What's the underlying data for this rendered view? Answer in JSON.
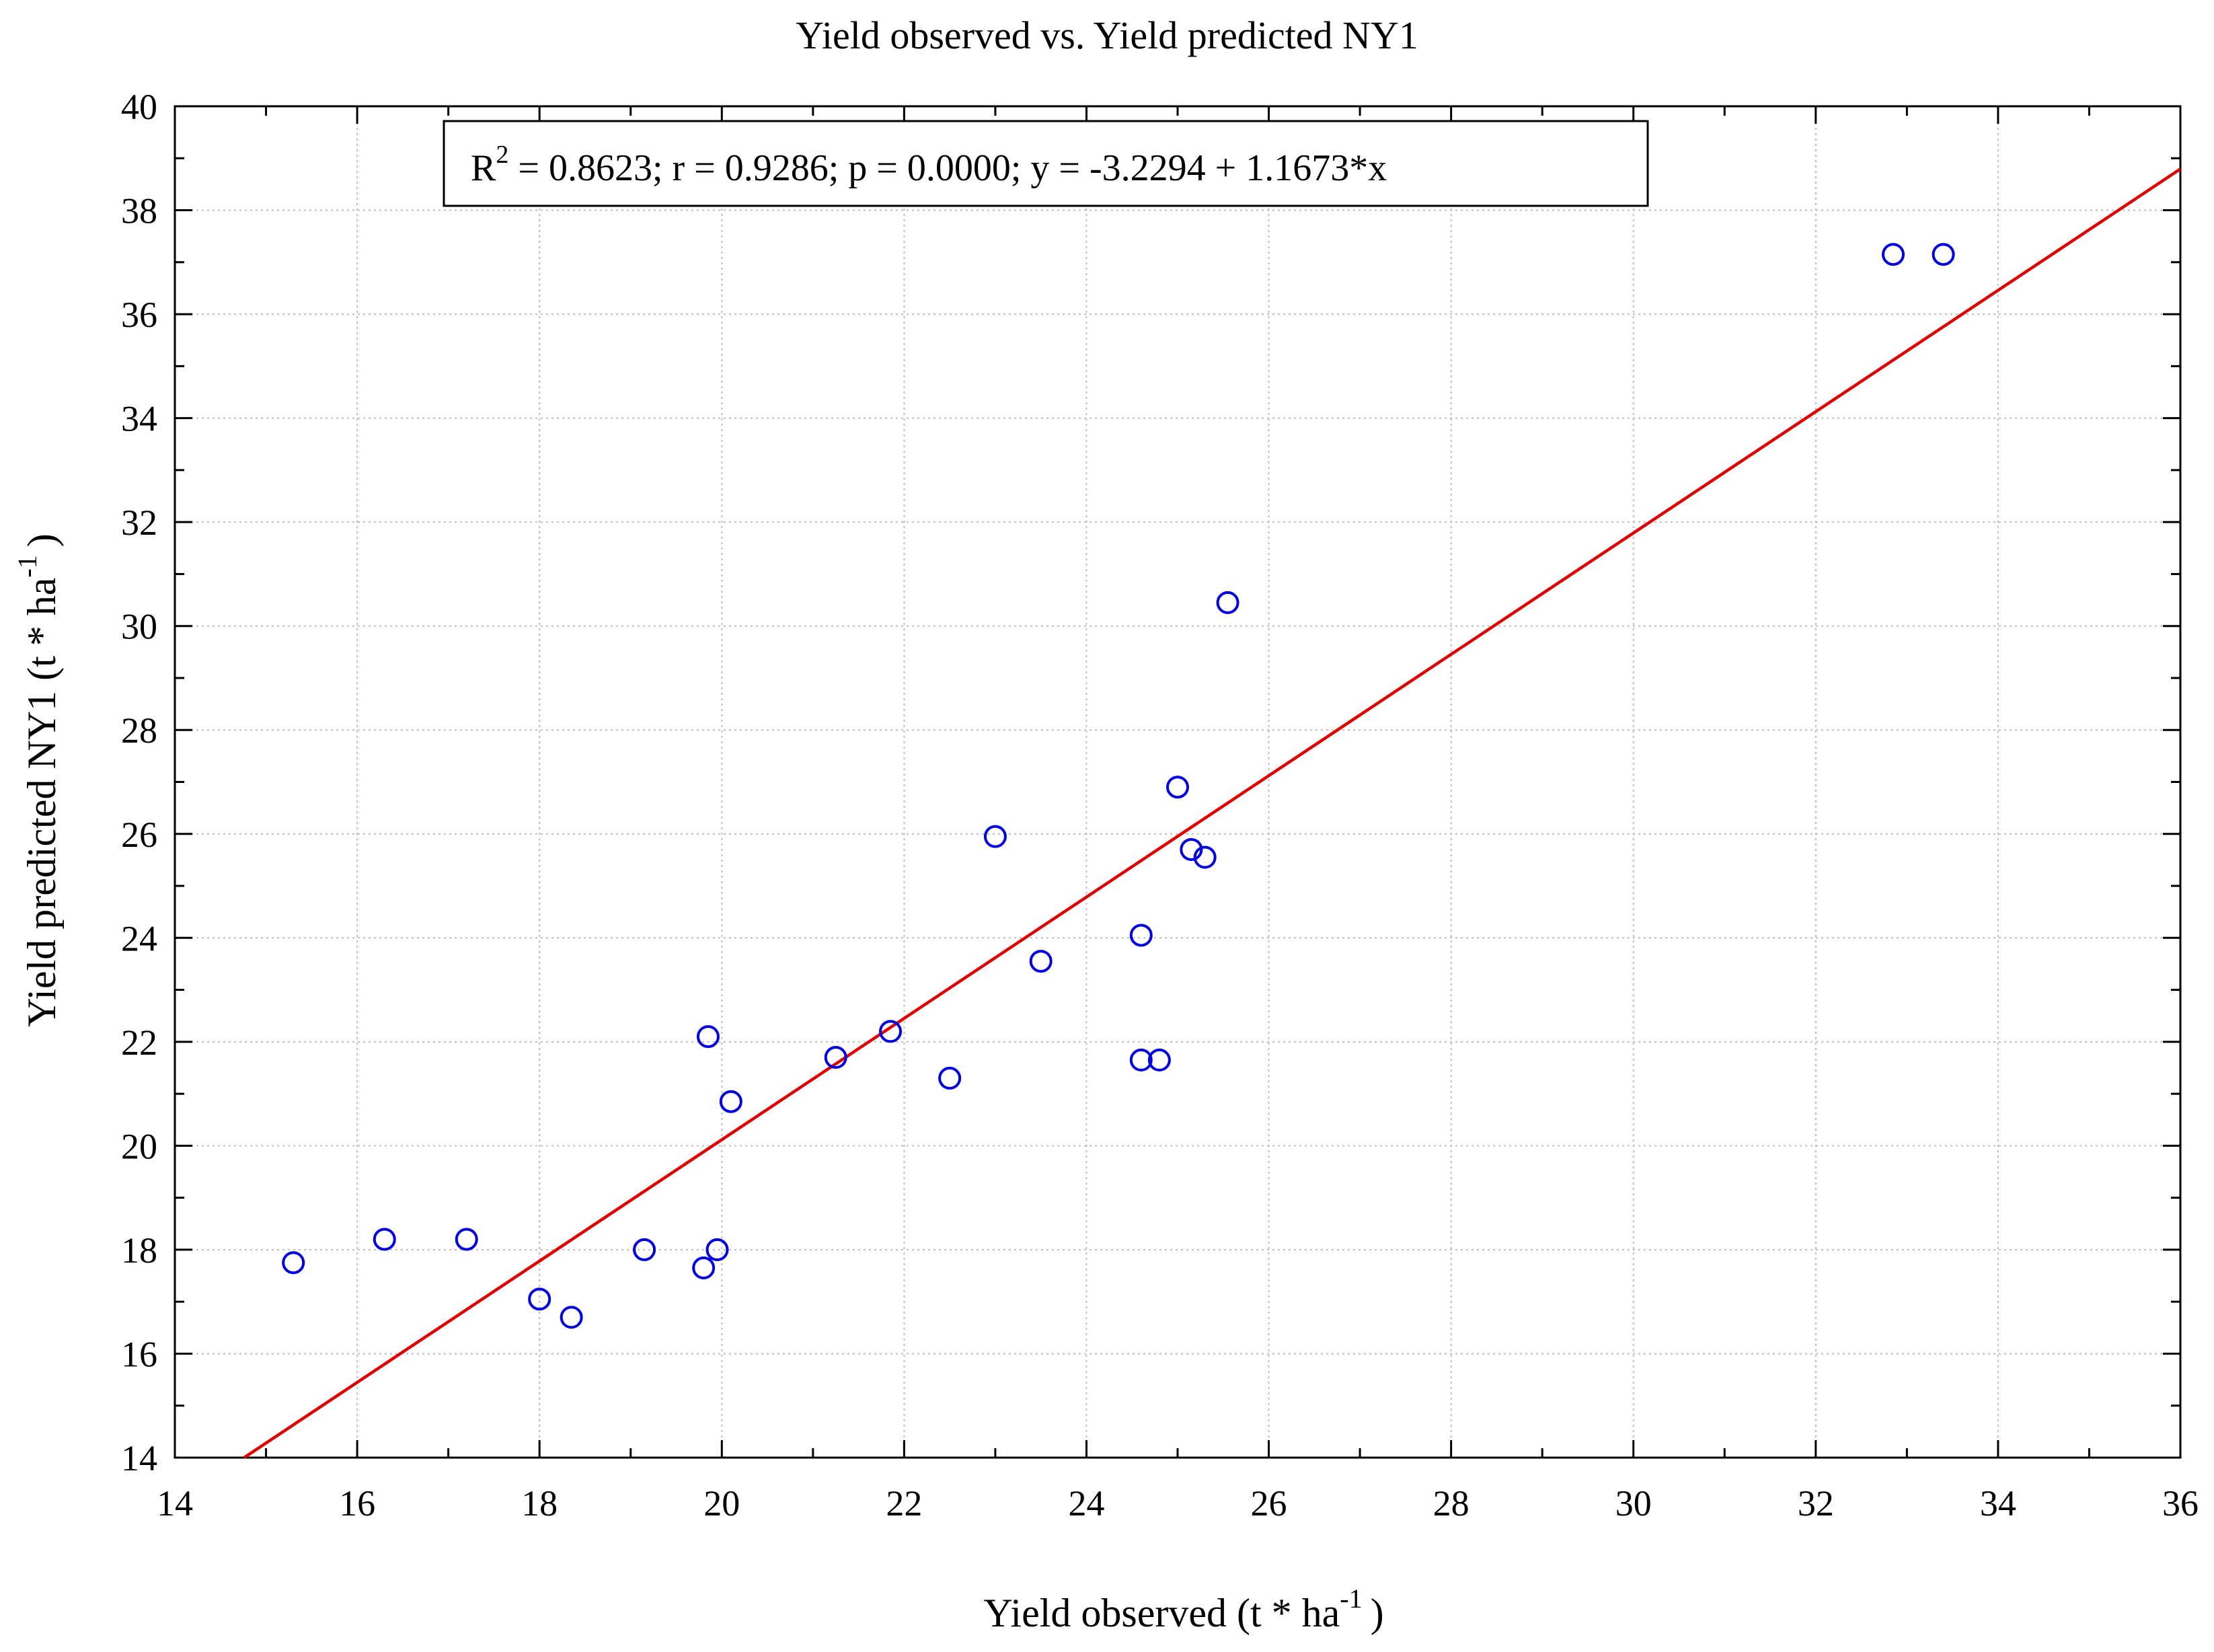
{
  "chart_data": {
    "type": "scatter",
    "title": "Yield observed vs. Yield predicted NY1",
    "xlabel": "Yield observed (t * ha",
    "xlabel_unit_exp": "-1",
    "xlabel_close": ")",
    "ylabel": "Yield predicted NY1 (t * ha",
    "ylabel_unit_exp": "-1",
    "ylabel_close": ")",
    "xlim": [
      14,
      36
    ],
    "ylim": [
      14,
      40
    ],
    "xticks": [
      14,
      16,
      18,
      20,
      22,
      24,
      26,
      28,
      30,
      32,
      34,
      36
    ],
    "yticks": [
      14,
      16,
      18,
      20,
      22,
      24,
      26,
      28,
      30,
      32,
      34,
      36,
      38,
      40
    ],
    "grid": true,
    "annotation": {
      "r2_label": "R",
      "r2_sup": "2",
      "text": " = 0.8623;  r = 0.9286; p = 0.0000;  y = -3.2294 + 1.1673*x"
    },
    "regression": {
      "intercept": -3.2294,
      "slope": 1.1673,
      "color": "#e00000"
    },
    "marker_color": "#0000e0",
    "series": [
      {
        "name": "NY1",
        "points": [
          [
            15.3,
            17.75
          ],
          [
            16.3,
            18.2
          ],
          [
            17.2,
            18.2
          ],
          [
            18.0,
            17.05
          ],
          [
            18.35,
            16.7
          ],
          [
            19.15,
            18.0
          ],
          [
            19.8,
            17.65
          ],
          [
            19.95,
            18.0
          ],
          [
            19.85,
            22.1
          ],
          [
            20.1,
            20.85
          ],
          [
            21.25,
            21.7
          ],
          [
            21.85,
            22.2
          ],
          [
            22.5,
            21.3
          ],
          [
            23.0,
            25.95
          ],
          [
            23.5,
            23.55
          ],
          [
            24.6,
            24.05
          ],
          [
            24.6,
            21.65
          ],
          [
            24.8,
            21.65
          ],
          [
            25.0,
            26.9
          ],
          [
            25.15,
            25.7
          ],
          [
            25.3,
            25.55
          ],
          [
            25.55,
            30.45
          ],
          [
            32.85,
            37.15
          ],
          [
            33.4,
            37.15
          ]
        ]
      }
    ]
  }
}
